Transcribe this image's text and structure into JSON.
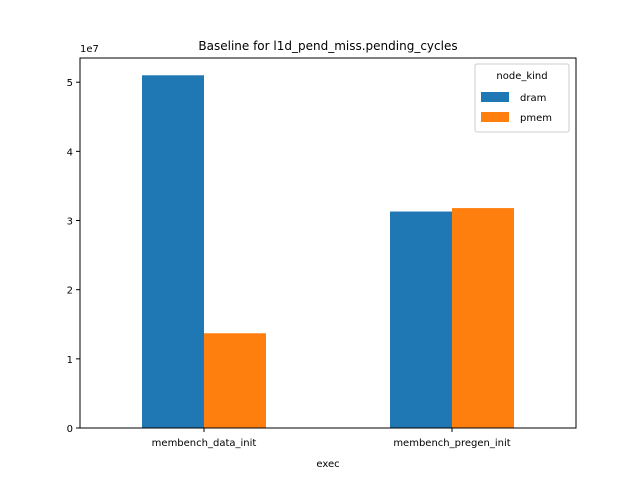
{
  "chart_data": {
    "type": "bar",
    "title": "Baseline for l1d_pend_miss.pending_cycles",
    "xlabel": "exec",
    "ylabel": "",
    "y_offset_text": "1e7",
    "categories": [
      "membench_data_init",
      "membench_pregen_init"
    ],
    "series": [
      {
        "name": "dram",
        "color": "#1f77b4",
        "values": [
          51000000,
          31300000
        ]
      },
      {
        "name": "pmem",
        "color": "#ff7f0e",
        "values": [
          13700000,
          31800000
        ]
      }
    ],
    "ylim": [
      0,
      53500000
    ],
    "y_ticks": [
      0,
      10000000,
      20000000,
      30000000,
      40000000,
      50000000
    ],
    "y_tick_labels": [
      "0",
      "1",
      "2",
      "3",
      "4",
      "5"
    ],
    "grid": false,
    "legend": {
      "title": "node_kind",
      "placement": "top-right"
    }
  }
}
